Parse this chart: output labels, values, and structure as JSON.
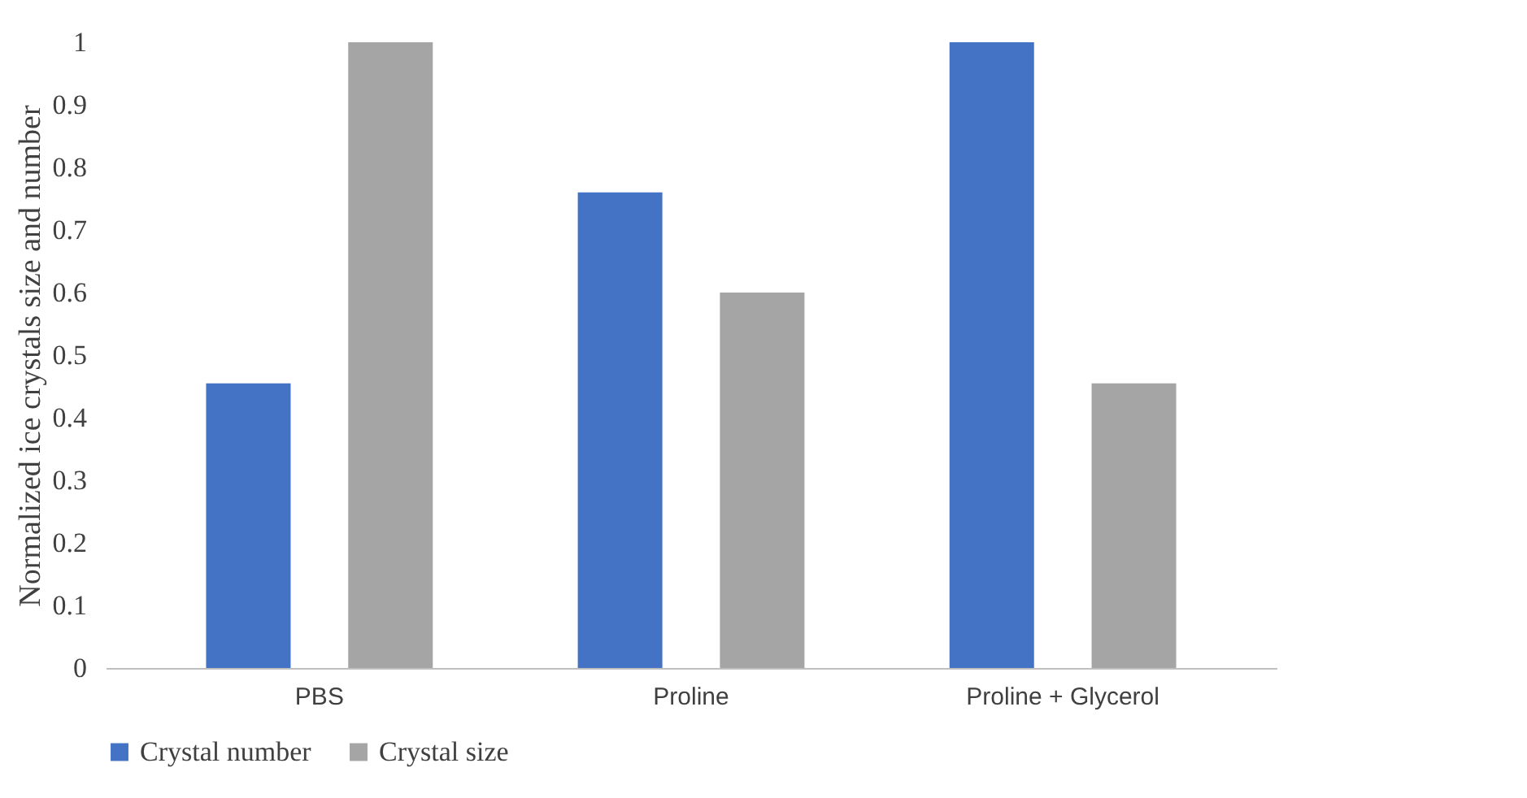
{
  "chart_data": {
    "type": "bar",
    "ylabel": "Normalized ice crystals size and number",
    "categories": [
      "PBS",
      "Proline",
      "Proline + Glycerol"
    ],
    "series": [
      {
        "name": "Crystal number",
        "color": "#4472c4",
        "values": [
          0.455,
          0.76,
          1.0
        ]
      },
      {
        "name": "Crystal size",
        "color": "#a5a5a5",
        "values": [
          1.0,
          0.6,
          0.455
        ]
      }
    ],
    "ylim": [
      0,
      1
    ],
    "yticks": [
      0,
      0.1,
      0.2,
      0.3,
      0.4,
      0.5,
      0.6,
      0.7,
      0.8,
      0.9,
      1
    ],
    "grid": false,
    "legend": "bottom"
  }
}
